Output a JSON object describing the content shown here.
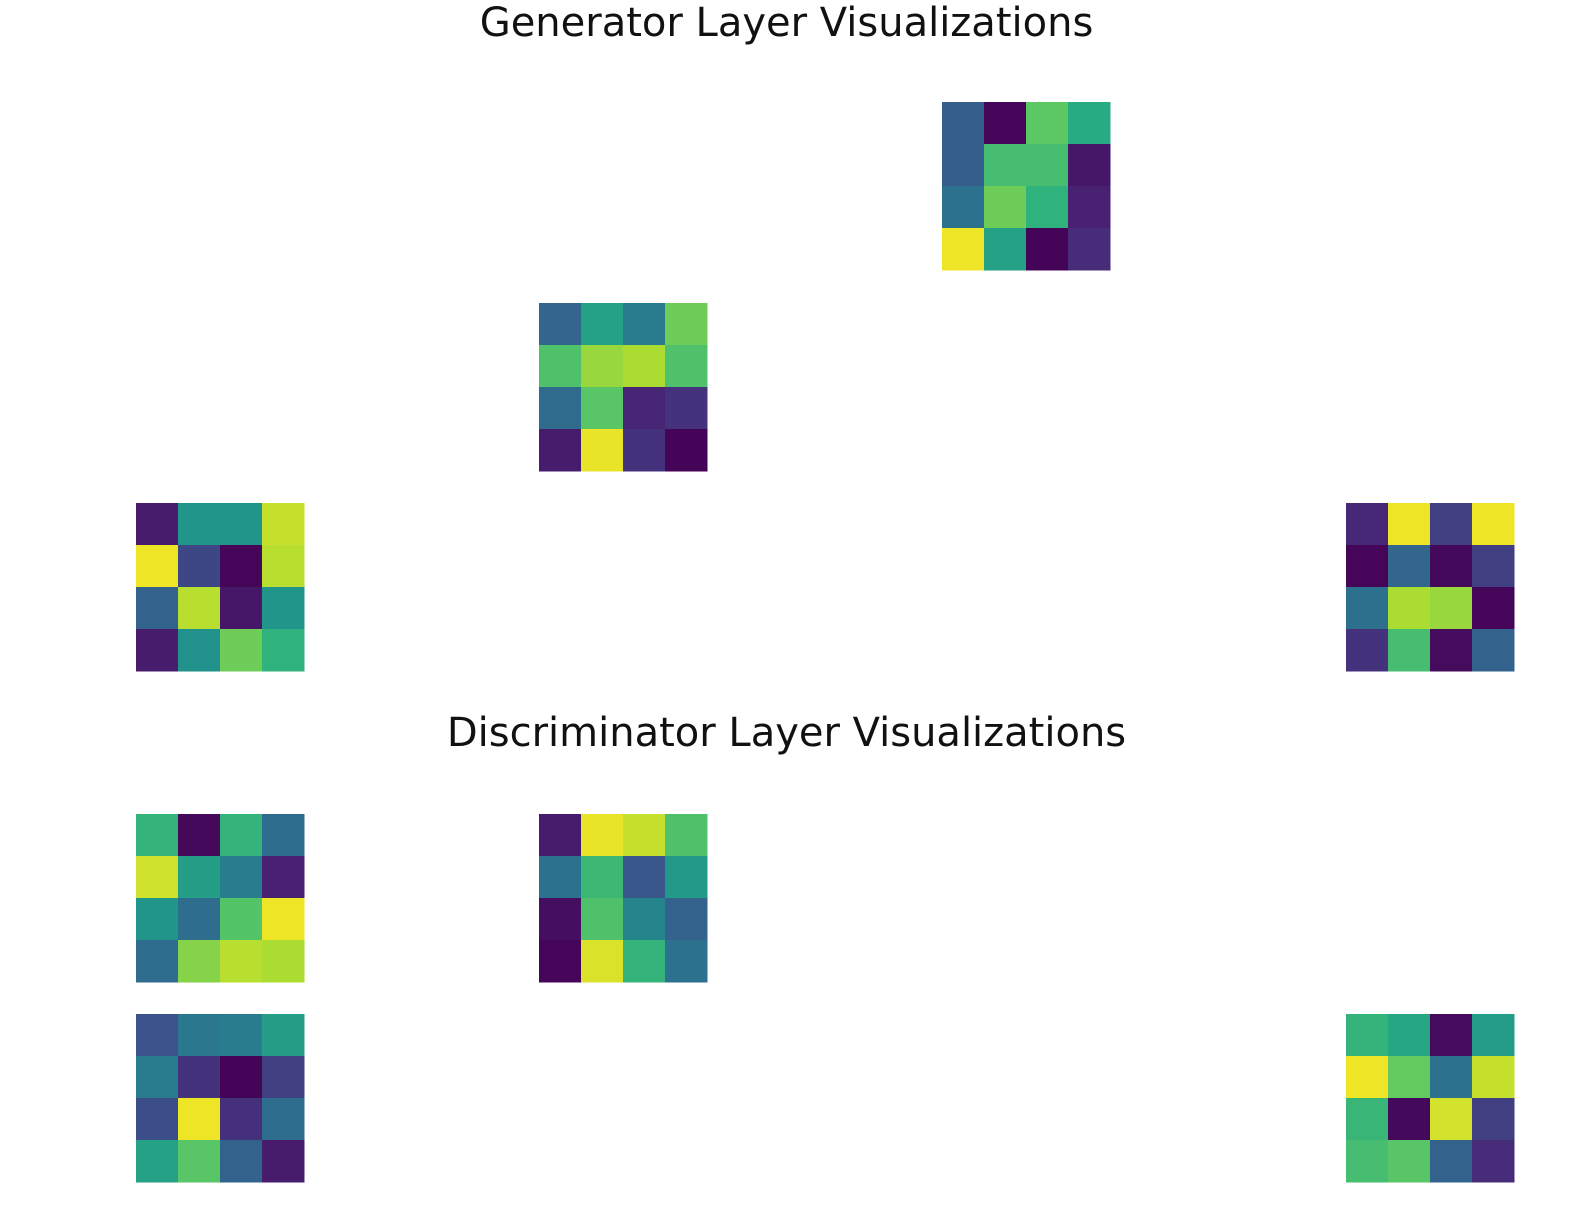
{
  "figure": {
    "generator_title": "Generator Layer Visualizations",
    "discriminator_title": "Discriminator Layer Visualizations"
  },
  "chart_data": [
    {
      "type": "heatmap",
      "title": "Generator Layer Visualizations",
      "colormap": "viridis",
      "grid": false,
      "axes": "off",
      "heatmaps": [
        {
          "id": "gen-1",
          "values": [
            [
              0.3,
              0.02,
              0.75,
              0.62
            ],
            [
              0.3,
              0.7,
              0.7,
              0.08
            ],
            [
              0.38,
              0.78,
              0.65,
              0.12
            ],
            [
              0.98,
              0.58,
              0.01,
              0.15
            ]
          ]
        },
        {
          "id": "gen-2",
          "values": [
            [
              0.33,
              0.58,
              0.42,
              0.78
            ],
            [
              0.72,
              0.85,
              0.88,
              0.72
            ],
            [
              0.35,
              0.74,
              0.13,
              0.17
            ],
            [
              0.1,
              0.97,
              0.17,
              0.01
            ]
          ]
        },
        {
          "id": "gen-3",
          "values": [
            [
              0.1,
              0.52,
              0.52,
              0.92
            ],
            [
              0.98,
              0.22,
              0.02,
              0.9
            ],
            [
              0.32,
              0.9,
              0.08,
              0.52
            ],
            [
              0.1,
              0.5,
              0.78,
              0.65
            ]
          ]
        },
        {
          "id": "gen-4",
          "values": [
            [
              0.14,
              0.98,
              0.2,
              0.98
            ],
            [
              0.02,
              0.33,
              0.03,
              0.2
            ],
            [
              0.37,
              0.88,
              0.85,
              0.02
            ],
            [
              0.17,
              0.7,
              0.04,
              0.32
            ]
          ]
        }
      ]
    },
    {
      "type": "heatmap",
      "title": "Discriminator Layer Visualizations",
      "colormap": "viridis",
      "grid": false,
      "axes": "off",
      "heatmaps": [
        {
          "id": "disc-1",
          "values": [
            [
              0.66,
              0.03,
              0.66,
              0.36
            ],
            [
              0.93,
              0.56,
              0.42,
              0.12
            ],
            [
              0.52,
              0.36,
              0.73,
              0.98
            ],
            [
              0.36,
              0.82,
              0.9,
              0.88
            ]
          ]
        },
        {
          "id": "disc-2",
          "values": [
            [
              0.1,
              0.97,
              0.92,
              0.72
            ],
            [
              0.38,
              0.68,
              0.27,
              0.54
            ],
            [
              0.05,
              0.72,
              0.45,
              0.32
            ],
            [
              0.02,
              0.95,
              0.66,
              0.38
            ]
          ]
        },
        {
          "id": "disc-3",
          "values": [
            [
              0.25,
              0.4,
              0.42,
              0.56
            ],
            [
              0.42,
              0.17,
              0.01,
              0.2
            ],
            [
              0.24,
              0.98,
              0.16,
              0.36
            ],
            [
              0.58,
              0.74,
              0.32,
              0.1
            ]
          ]
        },
        {
          "id": "disc-4",
          "values": [
            [
              0.66,
              0.6,
              0.04,
              0.55
            ],
            [
              0.98,
              0.76,
              0.38,
              0.92
            ],
            [
              0.67,
              0.03,
              0.94,
              0.2
            ],
            [
              0.7,
              0.74,
              0.32,
              0.15
            ]
          ]
        }
      ]
    }
  ]
}
